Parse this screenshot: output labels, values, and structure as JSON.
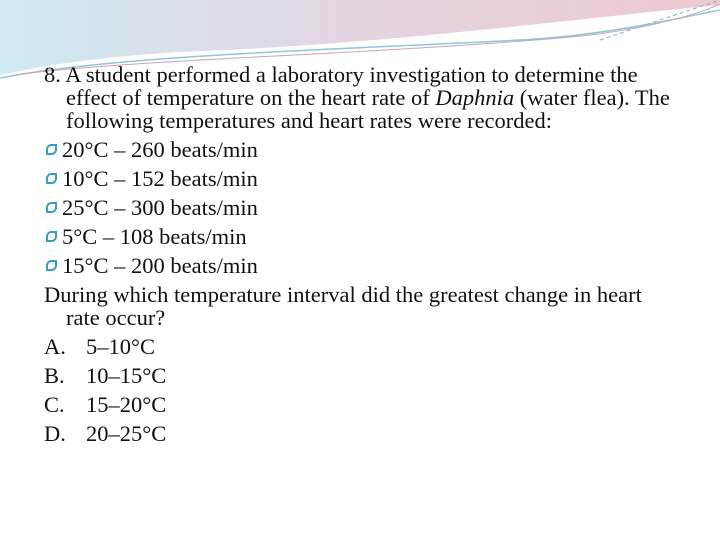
{
  "question": {
    "number": "8.",
    "text_before": "A student performed a laboratory investigation to determine the effect of temperature on the heart rate of",
    "organism": "Daphnia",
    "text_after": "(water flea).  The following temperatures and heart rates were recorded:"
  },
  "readings": [
    "20°C – 260 beats/min",
    "10°C – 152 beats/min",
    "25°C – 300 beats/min",
    "5°C – 108 beats/min",
    "15°C – 200 beats/min"
  ],
  "prompt": "During which temperature interval did the greatest change in heart rate occur?",
  "options": [
    {
      "letter": "A.",
      "text": "5–10°C"
    },
    {
      "letter": "B.",
      "text": "10–15°C"
    },
    {
      "letter": "C.",
      "text": "15–20°C"
    },
    {
      "letter": "D.",
      "text": "20–25°C"
    }
  ]
}
